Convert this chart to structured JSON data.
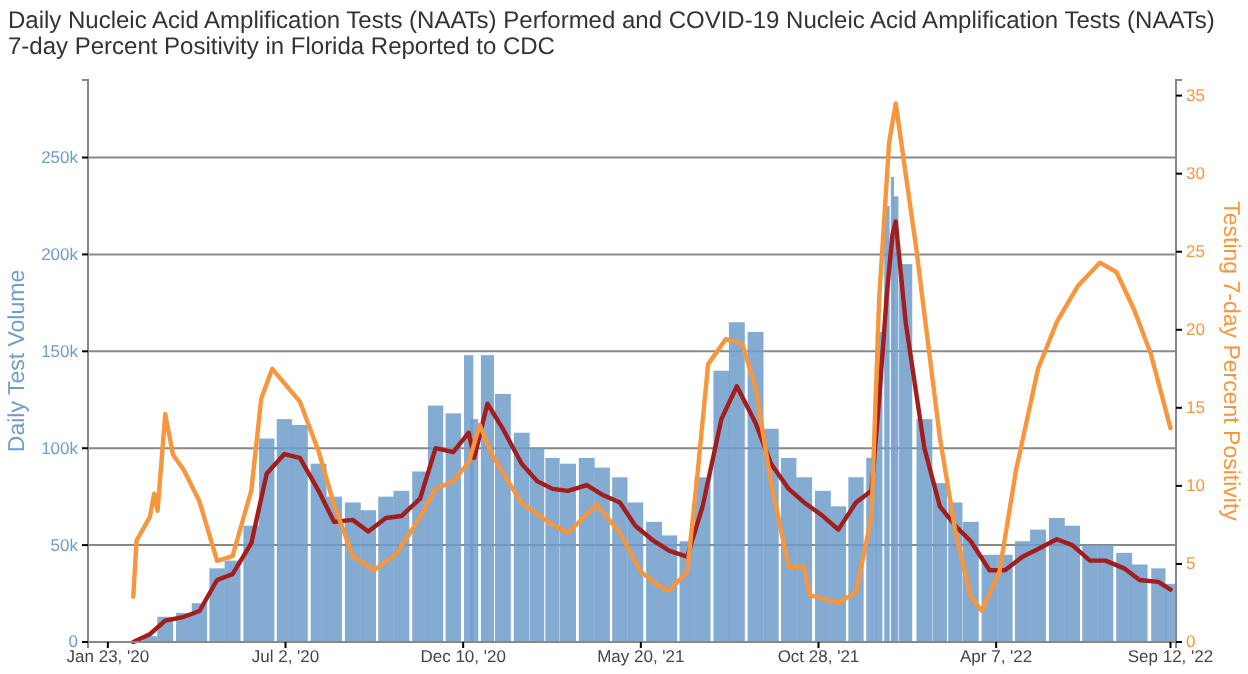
{
  "chart_data": {
    "type": "bar",
    "title": "Daily Nucleic Acid Amplification Tests (NAATs) Performed and COVID-19 Nucleic Acid Amplification Tests (NAATs) 7-day Percent Positivity in Florida Reported to CDC",
    "ylabel": "Daily Test Volume",
    "y2label": "Testing 7-day Percent Positivity",
    "grid": "y",
    "xlim": [
      "2020-01-05",
      "2022-09-17"
    ],
    "xticks": [
      {
        "value": "2020-01-23",
        "label": "Jan 23, '20"
      },
      {
        "value": "2020-07-02",
        "label": "Jul 2, '20"
      },
      {
        "value": "2020-12-10",
        "label": "Dec 10, '20"
      },
      {
        "value": "2021-05-20",
        "label": "May 20, '21"
      },
      {
        "value": "2021-10-28",
        "label": "Oct 28, '21"
      },
      {
        "value": "2022-04-07",
        "label": "Apr 7, '22"
      },
      {
        "value": "2022-09-12",
        "label": "Sep 12, '22"
      }
    ],
    "ylim": [
      0,
      290000
    ],
    "yticks": [
      0,
      {
        "value": 50000,
        "label": "50k"
      },
      {
        "value": 100000,
        "label": "100k"
      },
      {
        "value": 150000,
        "label": "150k"
      },
      {
        "value": 200000,
        "label": "200k"
      },
      {
        "value": 250000,
        "label": "250k"
      }
    ],
    "y2lim": [
      0,
      36
    ],
    "y2ticks": [
      0,
      5,
      10,
      15,
      20,
      25,
      30,
      35
    ],
    "x": [
      "2020-02-15",
      "2020-03-01",
      "2020-03-15",
      "2020-04-01",
      "2020-04-15",
      "2020-05-01",
      "2020-05-15",
      "2020-06-01",
      "2020-06-15",
      "2020-07-01",
      "2020-07-15",
      "2020-08-01",
      "2020-08-15",
      "2020-09-01",
      "2020-09-15",
      "2020-10-01",
      "2020-10-15",
      "2020-11-01",
      "2020-11-15",
      "2020-12-01",
      "2020-12-15",
      "2020-12-20",
      "2021-01-01",
      "2021-01-15",
      "2021-02-01",
      "2021-02-15",
      "2021-03-01",
      "2021-03-15",
      "2021-04-01",
      "2021-04-15",
      "2021-05-01",
      "2021-05-15",
      "2021-06-01",
      "2021-06-15",
      "2021-07-01",
      "2021-07-15",
      "2021-08-01",
      "2021-08-15",
      "2021-09-01",
      "2021-09-15",
      "2021-10-01",
      "2021-10-15",
      "2021-11-01",
      "2021-11-15",
      "2021-12-01",
      "2021-12-15",
      "2021-12-22",
      "2021-12-29",
      "2022-01-03",
      "2022-01-06",
      "2022-01-15",
      "2022-02-01",
      "2022-02-15",
      "2022-03-01",
      "2022-03-15",
      "2022-04-01",
      "2022-04-15",
      "2022-05-01",
      "2022-05-15",
      "2022-06-01",
      "2022-06-15",
      "2022-07-01",
      "2022-07-15",
      "2022-08-01",
      "2022-08-15",
      "2022-09-01",
      "2022-09-12"
    ],
    "series": [
      {
        "color": "#6f9cc9",
        "axis": "y",
        "values": [
          0,
          3000,
          13000,
          15000,
          20000,
          38000,
          42000,
          60000,
          105000,
          115000,
          112000,
          92000,
          75000,
          72000,
          68000,
          75000,
          78000,
          88000,
          122000,
          118000,
          148000,
          115000,
          148000,
          128000,
          108000,
          100000,
          95000,
          92000,
          95000,
          90000,
          85000,
          72000,
          62000,
          55000,
          52000,
          85000,
          140000,
          165000,
          160000,
          110000,
          95000,
          85000,
          78000,
          70000,
          85000,
          95000,
          160000,
          225000,
          240000,
          230000,
          195000,
          115000,
          82000,
          72000,
          62000,
          45000,
          45000,
          52000,
          58000,
          64000,
          60000,
          50000,
          50000,
          46000,
          40000,
          38000,
          30000
        ]
      },
      {
        "type": "line",
        "color": "#a31d1d",
        "axis": "y",
        "values": [
          0,
          4000,
          11000,
          13000,
          16000,
          32000,
          35000,
          51000,
          87000,
          97000,
          95000,
          78000,
          62000,
          63000,
          57000,
          64000,
          65000,
          74000,
          100000,
          98000,
          108000,
          95000,
          123000,
          110000,
          92000,
          83000,
          79000,
          78000,
          81000,
          76000,
          72000,
          60000,
          52000,
          47000,
          44000,
          70000,
          115000,
          132000,
          113000,
          92000,
          79000,
          72000,
          65000,
          58000,
          72000,
          78000,
          125000,
          180000,
          210000,
          217000,
          165000,
          100000,
          70000,
          60000,
          52000,
          37000,
          37000,
          44000,
          48000,
          53000,
          50000,
          42000,
          42000,
          38000,
          32000,
          31000,
          27000
        ]
      },
      {
        "type": "line",
        "color": "#f7963c",
        "axis": "y2",
        "x": [
          "2020-02-15",
          "2020-02-18",
          "2020-03-01",
          "2020-03-05",
          "2020-03-08",
          "2020-03-15",
          "2020-03-22",
          "2020-04-01",
          "2020-04-15",
          "2020-05-01",
          "2020-05-15",
          "2020-06-01",
          "2020-06-10",
          "2020-06-20",
          "2020-07-15",
          "2020-08-01",
          "2020-08-15",
          "2020-09-01",
          "2020-09-20",
          "2020-10-10",
          "2020-11-01",
          "2020-11-15",
          "2020-12-01",
          "2020-12-15",
          "2020-12-25",
          "2021-01-05",
          "2021-02-01",
          "2021-03-01",
          "2021-03-15",
          "2021-04-10",
          "2021-05-01",
          "2021-05-20",
          "2021-06-05",
          "2021-06-15",
          "2021-07-01",
          "2021-07-10",
          "2021-07-20",
          "2021-08-05",
          "2021-08-20",
          "2021-09-01",
          "2021-09-15",
          "2021-10-01",
          "2021-10-15",
          "2021-10-20",
          "2021-11-15",
          "2021-12-01",
          "2021-12-15",
          "2021-12-22",
          "2021-12-31",
          "2022-01-06",
          "2022-01-15",
          "2022-01-25",
          "2022-02-01",
          "2022-02-15",
          "2022-03-01",
          "2022-03-15",
          "2022-03-25",
          "2022-04-10",
          "2022-04-25",
          "2022-05-15",
          "2022-06-01",
          "2022-06-20",
          "2022-07-10",
          "2022-07-25",
          "2022-08-10",
          "2022-08-25",
          "2022-09-12"
        ],
        "values": [
          2.9,
          6.5,
          8,
          9.5,
          8.4,
          14.6,
          12,
          11,
          9,
          5.2,
          5.5,
          9.7,
          15.6,
          17.5,
          15.4,
          12.2,
          8.8,
          5.5,
          4.6,
          5.6,
          8,
          9.8,
          10.3,
          11.5,
          13.9,
          12,
          8.9,
          7.5,
          7,
          8.8,
          7,
          4.5,
          3.6,
          3.3,
          4.5,
          10.5,
          17.8,
          19.4,
          19.1,
          16.3,
          10.2,
          4.8,
          4.8,
          3,
          2.5,
          3.2,
          8,
          22,
          32,
          34.5,
          30,
          25,
          21,
          13.1,
          7.1,
          2.9,
          2,
          4.5,
          11,
          17.5,
          20.5,
          22.8,
          24.3,
          23.7,
          21.3,
          18.5,
          13.7
        ]
      }
    ]
  }
}
